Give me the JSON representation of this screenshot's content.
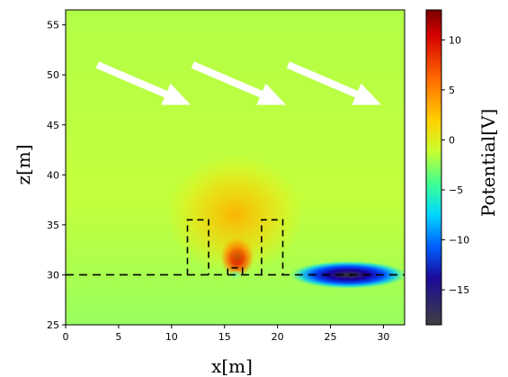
{
  "chart_data": {
    "type": "heatmap",
    "title": "",
    "xlabel": "x[m]",
    "ylabel": "z[m]",
    "colorbar_label": "Potential[V]",
    "colormap": "jet-like (dark grey low, blue, cyan, green, yellow, orange, red, dark red high)",
    "xlim": [
      0,
      32
    ],
    "ylim": [
      25,
      56.5
    ],
    "clim": [
      -18.5,
      13
    ],
    "x_ticks": [
      0,
      5,
      10,
      15,
      20,
      25,
      30
    ],
    "x_tick_labels": [
      "0",
      "5",
      "10",
      "15",
      "20",
      "25",
      "30"
    ],
    "y_ticks": [
      25,
      30,
      35,
      40,
      45,
      50,
      55
    ],
    "y_tick_labels": [
      "25",
      "30",
      "35",
      "40",
      "45",
      "50",
      "55"
    ],
    "colorbar_ticks": [
      10,
      5,
      0,
      -5,
      -10,
      -15
    ],
    "colorbar_tick_labels": [
      "10",
      "5",
      "0",
      "−5",
      "−10",
      "−15"
    ],
    "background_potential": 1.5,
    "features": [
      {
        "kind": "hot_spot",
        "x": 16.2,
        "z": 31.8,
        "potential": 12
      },
      {
        "kind": "warm_region",
        "x": 16,
        "z": 36,
        "potential": 5
      },
      {
        "kind": "negative_region",
        "x": 26.7,
        "z": 30,
        "potential": -15
      },
      {
        "kind": "small_cool_spot",
        "x": 16,
        "z": 30,
        "potential": -1
      }
    ],
    "ground_line_z": 30,
    "building_outlines": [
      {
        "x": [
          11.5,
          13.5
        ],
        "z": [
          30,
          35.5
        ]
      },
      {
        "x": [
          18.5,
          20.5
        ],
        "z": [
          30,
          35.5
        ]
      },
      {
        "x": [
          15.3,
          16.7
        ],
        "z": [
          30,
          30.7
        ]
      }
    ],
    "wind_arrows": [
      {
        "from": [
          3,
          51
        ],
        "to": [
          11.8,
          47
        ]
      },
      {
        "from": [
          12,
          51
        ],
        "to": [
          20.8,
          47
        ]
      },
      {
        "from": [
          21,
          51
        ],
        "to": [
          29.8,
          47
        ]
      }
    ],
    "grid": false,
    "legend": "colorbar on right"
  }
}
